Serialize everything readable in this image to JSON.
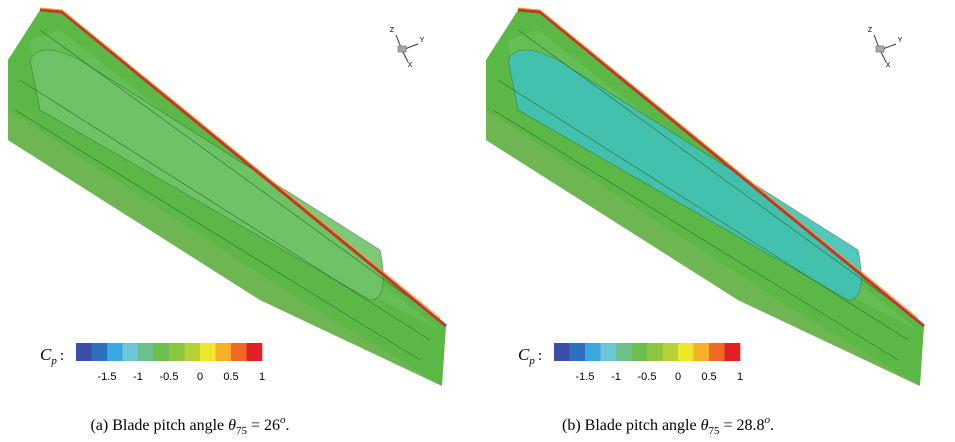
{
  "panels": [
    {
      "colorbar": {
        "symbol": "C",
        "sub": "p",
        "colon": ":",
        "ticks": [
          "-1.5",
          "-1",
          "-0.5",
          "0",
          "0.5",
          "1"
        ]
      },
      "axes": [
        "Z",
        "Y",
        "X"
      ],
      "caption": {
        "text": "(a) Blade pitch angle",
        "symbol": "θ",
        "sub": "75",
        "rhs": "= 26",
        "sup": "o",
        "end": "."
      }
    },
    {
      "colorbar": {
        "symbol": "C",
        "sub": "p",
        "colon": ":",
        "ticks": [
          "-1.5",
          "-1",
          "-0.5",
          "0",
          "0.5",
          "1"
        ]
      },
      "axes": [
        "Z",
        "Y",
        "X"
      ],
      "caption": {
        "text": "(b) Blade pitch angle",
        "symbol": "θ",
        "sub": "75",
        "rhs": "= 28.8",
        "sup": "o",
        "end": "."
      }
    }
  ],
  "colorbar_colors": [
    "#3a4fa5",
    "#2f6fc0",
    "#3ba7e0",
    "#6cc6d6",
    "#6cc08c",
    "#6cbf4e",
    "#8cc63f",
    "#b4d334",
    "#efe52b",
    "#f6b02a",
    "#f06a25",
    "#e32026"
  ]
}
